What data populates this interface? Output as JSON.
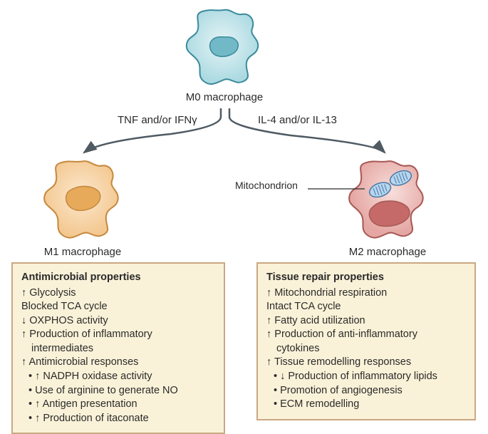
{
  "cells": {
    "m0": {
      "label": "M0 macrophage",
      "fill": "#aad9e1",
      "stroke": "#3b8a9c",
      "highlight": "#e5f4f6",
      "nucleus_fill": "#71b9c6",
      "nucleus_stroke": "#3b8a9c"
    },
    "m1": {
      "label": "M1 macrophage",
      "fill": "#f3c78f",
      "stroke": "#c68a3f",
      "highlight": "#fce8cf",
      "nucleus_fill": "#e7a95a",
      "nucleus_stroke": "#c68a3f"
    },
    "m2": {
      "label": "M2 macrophage",
      "fill": "#e5a7a3",
      "stroke": "#a85a56",
      "highlight": "#f7dedb",
      "nucleus_fill": "#c56a69",
      "nucleus_stroke": "#a85a56",
      "mito_fill": "#b7d6ef",
      "mito_stroke": "#4a7ba6"
    }
  },
  "pathways": {
    "left": "TNF and/or IFNγ",
    "right": "IL-4 and/or IL-13"
  },
  "pointer": {
    "mito": "Mitochondrion"
  },
  "arrow_color": "#4f5a63",
  "boxes": {
    "m1": {
      "title": "Antimicrobial properties",
      "lines": [
        {
          "arrow": "up",
          "text": "Glycolysis"
        },
        {
          "arrow": "",
          "text": "Blocked TCA cycle"
        },
        {
          "arrow": "down",
          "text": "OXPHOS activity"
        },
        {
          "arrow": "up",
          "text": "Production of inflammatory"
        },
        {
          "arrow": "",
          "text": "intermediates",
          "sub": true
        },
        {
          "arrow": "up",
          "text": "Antimicrobial responses"
        },
        {
          "arrow": "",
          "bullet": true,
          "inner_arrow": "up",
          "text": "NADPH oxidase activity"
        },
        {
          "arrow": "",
          "bullet": true,
          "text": "Use of arginine to generate NO"
        },
        {
          "arrow": "",
          "bullet": true,
          "inner_arrow": "up",
          "text": "Antigen presentation"
        },
        {
          "arrow": "",
          "bullet": true,
          "inner_arrow": "up",
          "text": "Production of itaconate"
        }
      ]
    },
    "m2": {
      "title": "Tissue repair properties",
      "lines": [
        {
          "arrow": "up",
          "text": "Mitochondrial respiration"
        },
        {
          "arrow": "",
          "text": "Intact TCA cycle"
        },
        {
          "arrow": "up",
          "text": "Fatty acid utilization"
        },
        {
          "arrow": "up",
          "text": "Production of anti-inflammatory"
        },
        {
          "arrow": "",
          "text": "cytokines",
          "sub": true
        },
        {
          "arrow": "up",
          "text": "Tissue remodelling responses"
        },
        {
          "arrow": "",
          "bullet": true,
          "inner_arrow": "down",
          "text": "Production of inflammatory lipids"
        },
        {
          "arrow": "",
          "bullet": true,
          "text": "Promotion of angiogenesis"
        },
        {
          "arrow": "",
          "bullet": true,
          "text": "ECM remodelling"
        }
      ]
    }
  }
}
